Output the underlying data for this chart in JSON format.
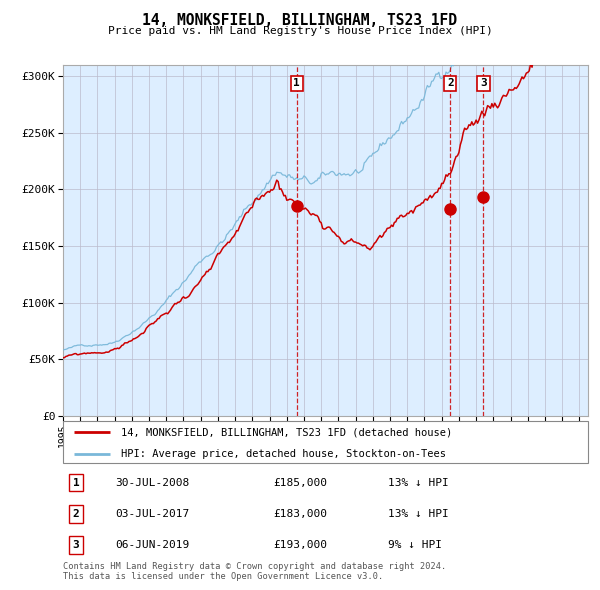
{
  "title": "14, MONKSFIELD, BILLINGHAM, TS23 1FD",
  "subtitle": "Price paid vs. HM Land Registry's House Price Index (HPI)",
  "legend_line1": "14, MONKSFIELD, BILLINGHAM, TS23 1FD (detached house)",
  "legend_line2": "HPI: Average price, detached house, Stockton-on-Tees",
  "transactions": [
    {
      "num": 1,
      "date": "30-JUL-2008",
      "price": 185000,
      "pct": "13%",
      "dir": "↓"
    },
    {
      "num": 2,
      "date": "03-JUL-2017",
      "price": 183000,
      "pct": "13%",
      "dir": "↓"
    },
    {
      "num": 3,
      "date": "06-JUN-2019",
      "price": 193000,
      "pct": "9%",
      "dir": "↓"
    }
  ],
  "transaction_dates_decimal": [
    2008.577,
    2017.503,
    2019.428
  ],
  "hpi_color": "#7ab8d9",
  "price_color": "#cc0000",
  "dot_color": "#cc0000",
  "vline_color": "#cc0000",
  "background_fill": "#ddeeff",
  "grid_color": "#bbbbcc",
  "ylim": [
    0,
    310000
  ],
  "yticks": [
    0,
    50000,
    100000,
    150000,
    200000,
    250000,
    300000
  ],
  "ytick_labels": [
    "£0",
    "£50K",
    "£100K",
    "£150K",
    "£200K",
    "£250K",
    "£300K"
  ],
  "xstart": 1995.0,
  "xend": 2025.5,
  "footer": "Contains HM Land Registry data © Crown copyright and database right 2024.\nThis data is licensed under the Open Government Licence v3.0."
}
